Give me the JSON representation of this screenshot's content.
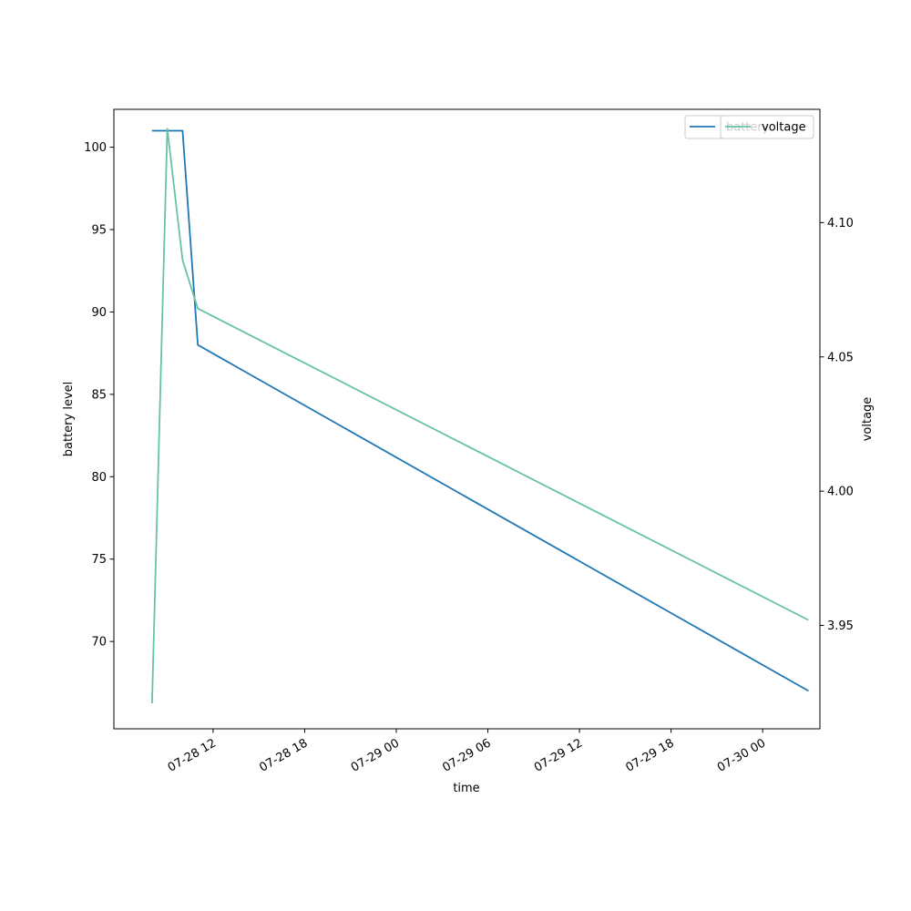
{
  "chart_data": {
    "type": "line",
    "title": "",
    "xlabel": "time",
    "ylabel": "battery level",
    "y2label": "voltage",
    "x_ticks": [
      "07-28 12",
      "07-28 18",
      "07-29 00",
      "07-29 06",
      "07-29 12",
      "07-29 18",
      "07-30 00"
    ],
    "y_ticks": [
      "70",
      "75",
      "80",
      "85",
      "90",
      "95",
      "100"
    ],
    "y2_ticks": [
      "3.95",
      "4.00",
      "4.05",
      "4.10"
    ],
    "ylim": [
      64.7,
      102.3
    ],
    "y2lim": [
      3.9115,
      4.1422
    ],
    "xlim": [
      "2024-07-28 05:30",
      "2024-07-30 03:45"
    ],
    "grid": false,
    "legend_position": "top-right",
    "series": [
      {
        "name": "battery",
        "axis": "left",
        "color": "#1f77b4",
        "x": [
          "2024-07-28 08:00",
          "2024-07-28 10:00",
          "2024-07-28 11:00",
          "2024-07-30 03:00"
        ],
        "values": [
          101,
          101,
          88,
          67
        ]
      },
      {
        "name": "voltage",
        "axis": "right",
        "color": "#66c2a5",
        "x": [
          "2024-07-28 08:00",
          "2024-07-28 09:00",
          "2024-07-28 10:00",
          "2024-07-28 11:00",
          "2024-07-30 03:00"
        ],
        "values": [
          3.921,
          4.135,
          4.086,
          4.068,
          3.952
        ]
      }
    ]
  }
}
